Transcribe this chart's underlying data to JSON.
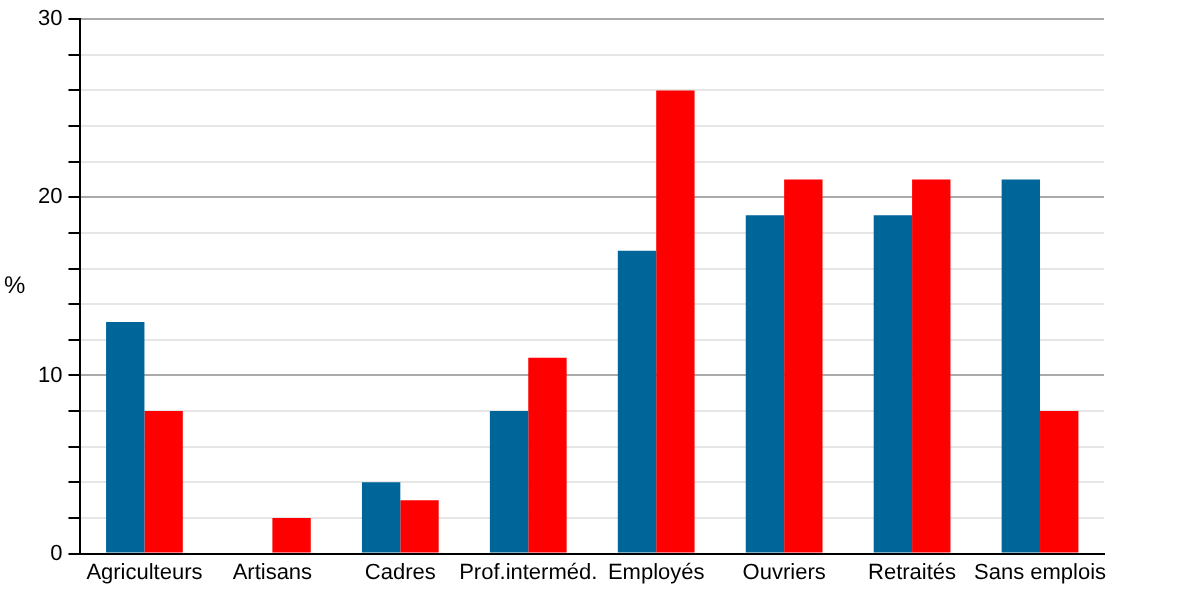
{
  "chart_data": {
    "type": "bar",
    "ylabel": "%",
    "categories": [
      "Agriculteurs",
      "Artisans",
      "Cadres",
      "Prof.interméd.",
      "Employés",
      "Ouvriers",
      "Retraités",
      "Sans emplois"
    ],
    "series": [
      {
        "color": "#006699",
        "values": [
          13,
          0,
          4,
          8,
          17,
          19,
          19,
          21
        ]
      },
      {
        "color": "#ff0000",
        "values": [
          8,
          2,
          3,
          11,
          26,
          21,
          21,
          8
        ]
      }
    ],
    "ylim": [
      0,
      30
    ],
    "yticks": [
      0,
      {
        "value": 2,
        "label": null
      },
      {
        "value": 4,
        "label": null
      },
      {
        "value": 6,
        "label": null
      },
      {
        "value": 8,
        "label": null
      },
      10,
      {
        "value": 12,
        "label": null
      },
      {
        "value": 14,
        "label": null
      },
      {
        "value": 16,
        "label": null
      },
      {
        "value": 18,
        "label": null
      },
      20,
      {
        "value": 22,
        "label": null
      },
      {
        "value": 24,
        "label": null
      },
      {
        "value": 26,
        "label": null
      },
      {
        "value": 28,
        "label": null
      },
      30
    ],
    "grid": "y",
    "legend": false
  }
}
